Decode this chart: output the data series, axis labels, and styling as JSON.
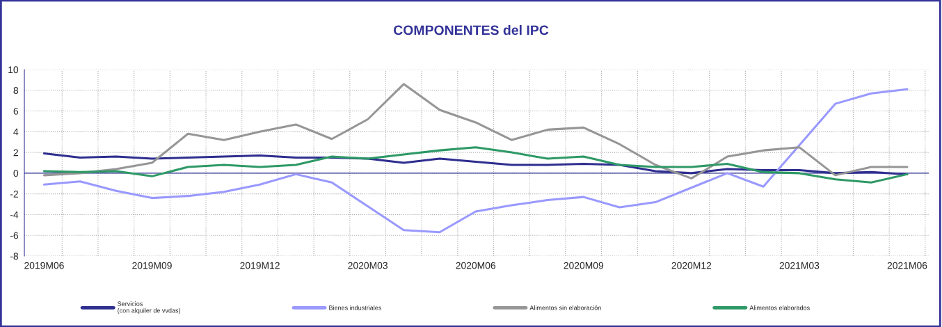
{
  "chart_data": {
    "type": "line",
    "title": "COMPONENTES del IPC",
    "categories": [
      "2019M06",
      null,
      null,
      "2019M09",
      null,
      null,
      "2019M12",
      null,
      null,
      "2020M03",
      null,
      null,
      "2020M06",
      null,
      null,
      "2020M09",
      null,
      null,
      "2020M12",
      null,
      null,
      "2021M03",
      null,
      null,
      "2021M06"
    ],
    "series": [
      {
        "name": "Servicios\n(con alquiler de vvdas)",
        "color": "#2e2e8f",
        "values": [
          1.9,
          1.5,
          1.6,
          1.4,
          1.5,
          1.6,
          1.7,
          1.5,
          1.5,
          1.4,
          1.0,
          1.4,
          1.1,
          0.8,
          0.8,
          0.9,
          0.8,
          0.2,
          0.0,
          0.4,
          0.3,
          0.3,
          0.0,
          0.1,
          -0.1
        ]
      },
      {
        "name": "Bienes industriales",
        "color": "#9999ff",
        "values": [
          -1.1,
          -0.8,
          -1.7,
          -2.4,
          -2.2,
          -1.8,
          -1.1,
          -0.1,
          -0.9,
          -3.2,
          -5.5,
          -5.7,
          -3.7,
          -3.1,
          -2.6,
          -2.3,
          -3.3,
          -2.8,
          -1.4,
          0.0,
          -1.3,
          2.7,
          6.7,
          7.7,
          8.1
        ]
      },
      {
        "name": "Alimentos sin elaboración",
        "color": "#969696",
        "values": [
          -0.2,
          0.0,
          0.4,
          1.0,
          3.8,
          3.2,
          4.0,
          4.7,
          3.3,
          5.2,
          8.6,
          6.1,
          4.9,
          3.2,
          4.2,
          4.4,
          2.8,
          0.8,
          -0.5,
          1.6,
          2.2,
          2.5,
          -0.2,
          0.6,
          0.6
        ]
      },
      {
        "name": "Alimentos elaborados",
        "color": "#2e9966",
        "values": [
          0.2,
          0.1,
          0.2,
          -0.3,
          0.6,
          0.8,
          0.6,
          0.8,
          1.6,
          1.4,
          1.8,
          2.2,
          2.5,
          2.0,
          1.4,
          1.6,
          0.8,
          0.6,
          0.6,
          0.9,
          0.1,
          0.0,
          -0.6,
          -0.9,
          -0.1
        ]
      }
    ],
    "ylim": [
      -8,
      10
    ],
    "yticks": [
      -8,
      -6,
      -4,
      -2,
      0,
      2,
      4,
      6,
      8,
      10
    ],
    "ref_lines": [
      {
        "axis": "y",
        "value": 0,
        "color": "#333399"
      }
    ],
    "grid": true,
    "legend": "bottom",
    "marker": "none",
    "line_style": "solid"
  }
}
